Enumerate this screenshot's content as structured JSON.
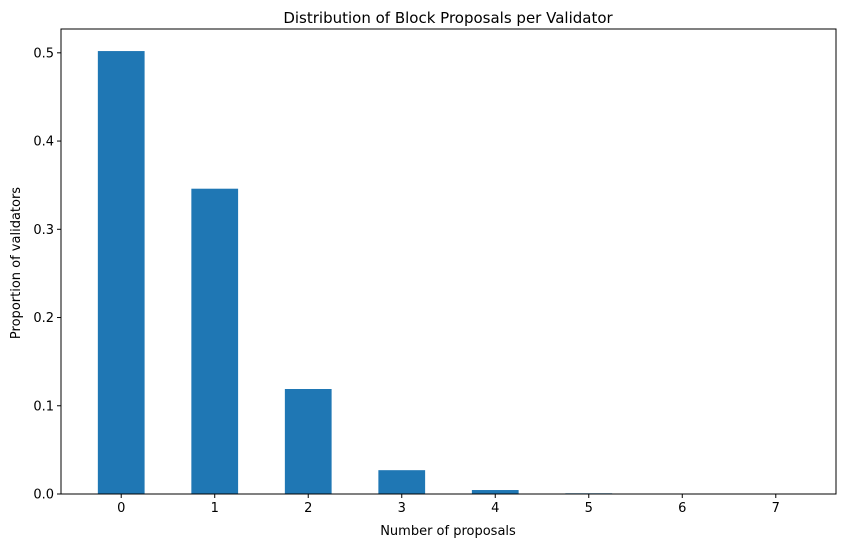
{
  "chart_data": {
    "type": "bar",
    "title": "Distribution of Block Proposals per Validator",
    "xlabel": "Number of proposals",
    "ylabel": "Proportion of validators",
    "categories": [
      "0",
      "1",
      "2",
      "3",
      "4",
      "5",
      "6",
      "7"
    ],
    "values": [
      0.502,
      0.346,
      0.119,
      0.027,
      0.0045,
      0.0008,
      0.0001,
      2e-05
    ],
    "yticks": [
      0.0,
      0.1,
      0.2,
      0.3,
      0.4,
      0.5
    ],
    "ytick_labels": [
      "0.0",
      "0.1",
      "0.2",
      "0.3",
      "0.4",
      "0.5"
    ],
    "ylim": [
      0,
      0.527
    ],
    "bar_color": "#1f77b4",
    "grid": false,
    "legend": "none"
  }
}
